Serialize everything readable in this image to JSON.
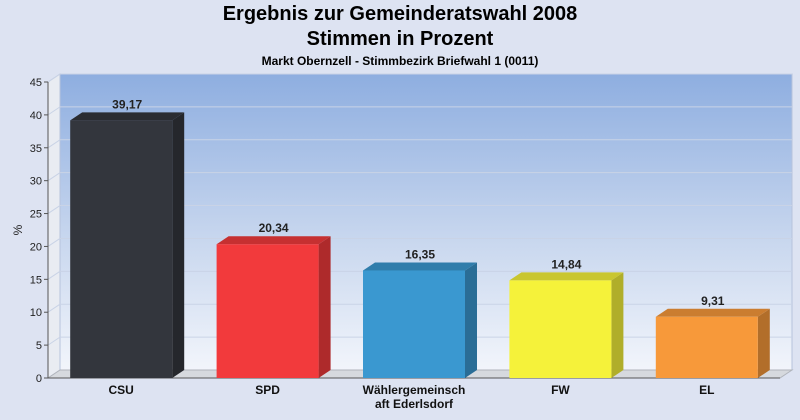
{
  "chart_data": {
    "type": "bar",
    "title": "Ergebnis zur Gemeinderatswahl 2008",
    "title2": "Stimmen in Prozent",
    "subtitle": "Markt Obernzell - Stimmbezirk Briefwahl 1 (0011)",
    "ylabel": "%",
    "ylim": [
      0,
      45
    ],
    "yticks": [
      "0",
      "5",
      "10",
      "15",
      "20",
      "25",
      "30",
      "35",
      "40",
      "45"
    ],
    "categories": [
      [
        "CSU"
      ],
      [
        "SPD"
      ],
      [
        "Wählergemeinsch",
        "aft Ederlsdorf"
      ],
      [
        "FW"
      ],
      [
        "EL"
      ]
    ],
    "values": [
      39.17,
      20.34,
      16.35,
      14.84,
      9.31
    ],
    "value_labels": [
      "39,17",
      "20,34",
      "16,35",
      "14,84",
      "9,31"
    ],
    "colors": [
      "#33363d",
      "#f23a3c",
      "#3a98d0",
      "#f5f23a",
      "#f7993a"
    ],
    "grid": true,
    "legend": "none"
  }
}
